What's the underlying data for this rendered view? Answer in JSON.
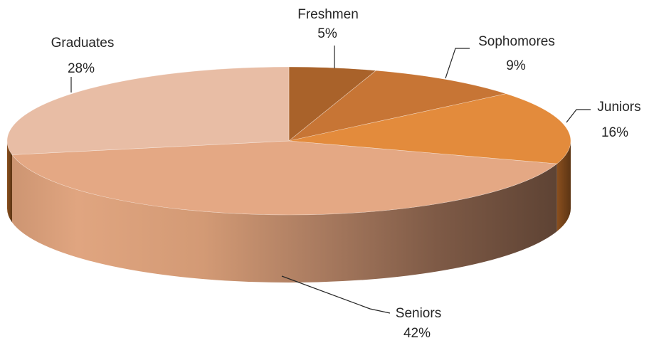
{
  "chart_data": {
    "type": "pie",
    "style": "3d",
    "title": "",
    "slices": [
      {
        "label": "Freshmen",
        "value": 5,
        "value_label": "5%",
        "color": "#A9622A"
      },
      {
        "label": "Sophomores",
        "value": 9,
        "value_label": "9%",
        "color": "#C77535"
      },
      {
        "label": "Juniors",
        "value": 16,
        "value_label": "16%",
        "color": "#E38B3C"
      },
      {
        "label": "Seniors",
        "value": 42,
        "value_label": "42%",
        "color": "#E4A884"
      },
      {
        "label": "Graduates",
        "value": 28,
        "value_label": "28%",
        "color": "#E8BDA5"
      }
    ],
    "legend": "none",
    "data_labels": "outside with leader lines"
  }
}
